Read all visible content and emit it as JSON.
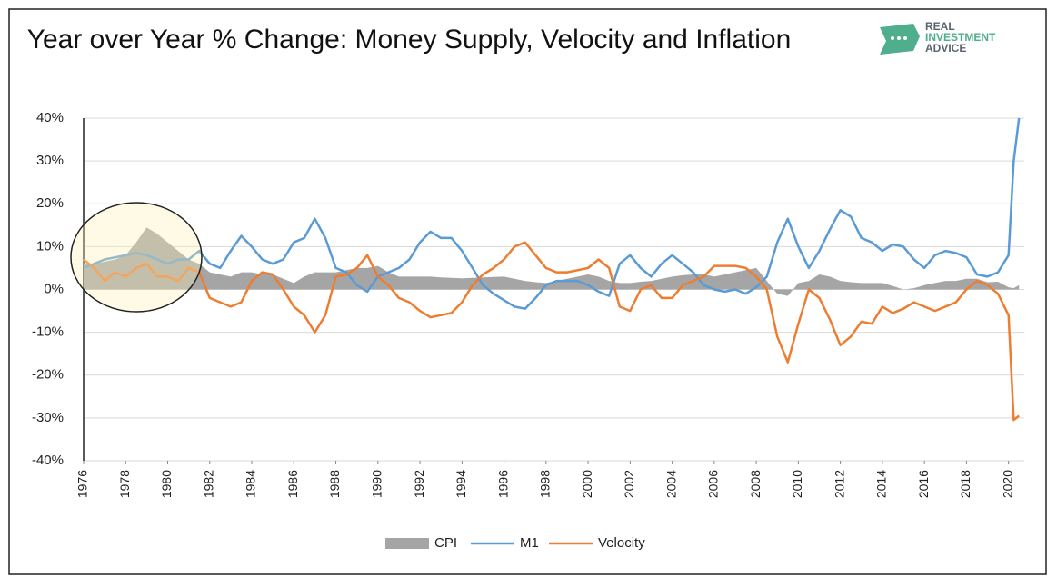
{
  "chart_data": {
    "type": "line",
    "title": "Year over Year % Change: Money Supply, Velocity and Inflation",
    "logo": [
      "REAL",
      "INVESTMENT",
      "ADVICE"
    ],
    "x": [
      1976,
      1976.5,
      1977,
      1977.5,
      1978,
      1978.5,
      1979,
      1979.5,
      1980,
      1980.5,
      1981,
      1981.5,
      1982,
      1982.5,
      1983,
      1983.5,
      1984,
      1984.5,
      1985,
      1985.5,
      1986,
      1986.5,
      1987,
      1987.5,
      1988,
      1988.5,
      1989,
      1989.5,
      1990,
      1990.5,
      1991,
      1991.5,
      1992,
      1992.5,
      1993,
      1993.5,
      1994,
      1994.5,
      1995,
      1995.5,
      1996,
      1996.5,
      1997,
      1997.5,
      1998,
      1998.5,
      1999,
      1999.5,
      2000,
      2000.5,
      2001,
      2001.5,
      2002,
      2002.5,
      2003,
      2003.5,
      2004,
      2004.5,
      2005,
      2005.5,
      2006,
      2006.5,
      2007,
      2007.5,
      2008,
      2008.5,
      2009,
      2009.5,
      2010,
      2010.5,
      2011,
      2011.5,
      2012,
      2012.5,
      2013,
      2013.5,
      2014,
      2014.5,
      2015,
      2015.5,
      2016,
      2016.5,
      2017,
      2017.5,
      2018,
      2018.5,
      2019,
      2019.5,
      2020,
      2020.25,
      2020.5
    ],
    "series": [
      {
        "name": "CPI",
        "kind": "area",
        "color": "#a5a5a5",
        "values": [
          6,
          6,
          6.5,
          7,
          8,
          11,
          14.5,
          13,
          11,
          9,
          7,
          6,
          4,
          3.5,
          3,
          4,
          4,
          3.5,
          3.5,
          2.5,
          1.5,
          3,
          4,
          4,
          4,
          4.5,
          5,
          5,
          5.5,
          4,
          3,
          3,
          3,
          3,
          2.8,
          2.7,
          2.6,
          2.7,
          2.8,
          2.9,
          3,
          2.5,
          2,
          1.7,
          1.5,
          2,
          2.5,
          3,
          3.5,
          3,
          2,
          1.5,
          1.5,
          1.8,
          2,
          2.5,
          3,
          3.3,
          3.5,
          3.5,
          3,
          3.5,
          4,
          4.5,
          5,
          2,
          -1,
          -1.5,
          1.5,
          2,
          3.5,
          3,
          2,
          1.7,
          1.5,
          1.5,
          1.5,
          0.8,
          0,
          0.3,
          1,
          1.5,
          2,
          2,
          2.5,
          2.5,
          1.7,
          1.8,
          0.5,
          0.3,
          1
        ]
      },
      {
        "name": "M1",
        "kind": "line",
        "color": "#5b9bd5",
        "values": [
          5,
          6,
          7,
          7.5,
          8,
          8.5,
          8,
          7,
          6,
          7,
          7,
          9,
          6,
          5,
          9,
          12.5,
          10,
          7,
          6,
          7,
          11,
          12,
          16.5,
          12,
          5,
          4,
          1,
          -0.5,
          3,
          4,
          5,
          7,
          11,
          13.5,
          12,
          12,
          9,
          5,
          1,
          -1,
          -2.5,
          -4,
          -4.5,
          -2,
          1,
          2,
          2,
          2,
          1,
          -0.5,
          -1.5,
          6,
          8,
          5,
          3,
          6,
          8,
          6,
          4,
          1,
          0,
          -0.5,
          0,
          -1,
          0.5,
          3,
          11,
          16.5,
          10,
          5,
          9,
          14,
          18.5,
          17,
          12,
          11,
          9,
          10.5,
          10,
          7,
          5,
          8,
          9,
          8.5,
          7.5,
          3.5,
          3,
          4,
          8,
          30,
          40
        ]
      },
      {
        "name": "Velocity",
        "kind": "line",
        "color": "#ed7d31",
        "values": [
          7,
          5,
          2,
          4,
          3,
          5,
          6,
          3,
          3,
          2,
          5,
          4,
          -2,
          -3,
          -4,
          -3,
          2,
          4,
          3.5,
          0,
          -4,
          -6,
          -10,
          -6,
          3,
          3.5,
          5,
          8,
          3,
          1,
          -2,
          -3,
          -5,
          -6.5,
          -6,
          -5.5,
          -3,
          1,
          3.5,
          5,
          7,
          10,
          11,
          8,
          5,
          4,
          4,
          4.5,
          5,
          7,
          5,
          -4,
          -5,
          0,
          1,
          -2,
          -2,
          1,
          2,
          3,
          5.5,
          5.5,
          5.5,
          5,
          3,
          0,
          -11,
          -17,
          -8,
          0,
          -2,
          -7,
          -13,
          -11,
          -7.5,
          -8,
          -4,
          -5.5,
          -4.5,
          -3,
          -4,
          -5,
          -4,
          -3,
          0,
          2,
          1,
          -1,
          -6,
          -30.5,
          -29.5
        ]
      }
    ],
    "xlim": [
      1976,
      2020.75
    ],
    "xticks": [
      1976,
      1978,
      1980,
      1982,
      1984,
      1986,
      1988,
      1990,
      1992,
      1994,
      1996,
      1998,
      2000,
      2002,
      2004,
      2006,
      2008,
      2010,
      2012,
      2014,
      2016,
      2018,
      2020
    ],
    "ylim": [
      -40,
      40
    ],
    "yticks": [
      {
        "value": -40,
        "label": "-40%"
      },
      {
        "value": -30,
        "label": "-30%"
      },
      {
        "value": -20,
        "label": "-20%"
      },
      {
        "value": -10,
        "label": "-10%"
      },
      {
        "value": 0,
        "label": "0%"
      },
      {
        "value": 10,
        "label": "10%"
      },
      {
        "value": 20,
        "label": "20%"
      },
      {
        "value": 30,
        "label": "30%"
      },
      {
        "value": 40,
        "label": "40%"
      }
    ],
    "grid": true,
    "legend": "bottom"
  }
}
